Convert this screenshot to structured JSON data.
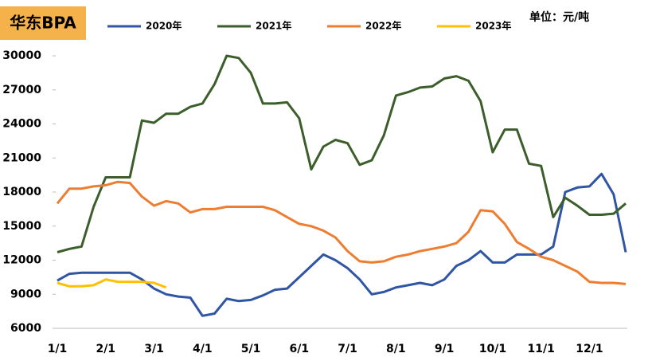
{
  "chart_data": {
    "type": "line",
    "title": "华东BPA",
    "unit": "单位：元/吨",
    "categories": [
      "1/1",
      null,
      null,
      null,
      "2/1",
      null,
      null,
      null,
      "3/1",
      null,
      null,
      null,
      "4/1",
      null,
      null,
      null,
      "5/1",
      null,
      null,
      null,
      "6/1",
      null,
      null,
      null,
      "7/1",
      null,
      null,
      null,
      "8/1",
      null,
      null,
      null,
      "9/1",
      null,
      null,
      null,
      "10/1",
      null,
      null,
      null,
      "11/1",
      null,
      null,
      null,
      "12/1",
      null,
      null,
      null
    ],
    "ylim": [
      6000,
      30000
    ],
    "yticks": [
      6000,
      9000,
      12000,
      15000,
      18000,
      21000,
      24000,
      27000,
      30000
    ],
    "grid": false,
    "series": [
      {
        "name": "2020年",
        "color": "#2f55a4",
        "values": [
          10200,
          10800,
          10900,
          10900,
          10900,
          10900,
          10900,
          10300,
          9500,
          9000,
          8800,
          8700,
          7100,
          7300,
          8600,
          8400,
          8500,
          8900,
          9400,
          9500,
          10500,
          11500,
          12500,
          12000,
          11300,
          10300,
          9000,
          9200,
          9600,
          9800,
          10000,
          9800,
          10300,
          11500,
          12000,
          12800,
          11800,
          11800,
          12500,
          12500,
          12500,
          13200,
          18000,
          18400,
          18500,
          19600,
          17800,
          12700
        ]
      },
      {
        "name": "2021年",
        "color": "#3b5e2b",
        "values": [
          12700,
          13000,
          13200,
          16700,
          19300,
          19300,
          19300,
          24300,
          24100,
          24900,
          24900,
          25500,
          25800,
          27500,
          30000,
          29800,
          28500,
          25800,
          25800,
          25900,
          24500,
          20000,
          22000,
          22600,
          22300,
          20400,
          20800,
          23000,
          26500,
          26800,
          27200,
          27300,
          28000,
          28200,
          27800,
          26000,
          21500,
          23500,
          23500,
          20500,
          20300,
          15800,
          17500,
          16800,
          16000,
          16000,
          16100,
          17000
        ]
      },
      {
        "name": "2022年",
        "color": "#ed7d31",
        "values": [
          17000,
          18300,
          18300,
          18500,
          18600,
          18900,
          18800,
          17600,
          16800,
          17200,
          17000,
          16200,
          16500,
          16500,
          16700,
          16700,
          16700,
          16700,
          16400,
          15800,
          15200,
          15000,
          14600,
          14000,
          12800,
          11900,
          11800,
          11900,
          12300,
          12500,
          12800,
          13000,
          13200,
          13500,
          14500,
          16400,
          16300,
          15200,
          13600,
          13000,
          12300,
          12000,
          11500,
          11000,
          10100,
          10000,
          10000,
          9900
        ]
      },
      {
        "name": "2023年",
        "color": "#ffc000",
        "values": [
          10000,
          9700,
          9700,
          9800,
          10300,
          10100,
          10100,
          10100,
          10000,
          9600,
          null,
          null,
          null,
          null,
          null,
          null,
          null,
          null,
          null,
          null,
          null,
          null,
          null,
          null,
          null,
          null,
          null,
          null,
          null,
          null,
          null,
          null,
          null,
          null,
          null,
          null,
          null,
          null,
          null,
          null,
          null,
          null,
          null,
          null,
          null,
          null,
          null,
          null
        ]
      }
    ]
  }
}
